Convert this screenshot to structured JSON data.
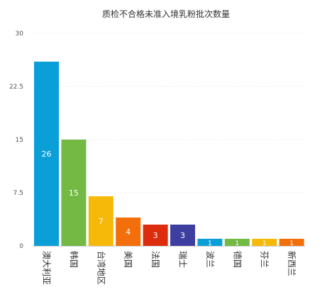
{
  "chart_data": {
    "type": "bar",
    "title": "质检不合格未准入境乳粉批次数量",
    "xlabel": "",
    "ylabel": "",
    "categories": [
      "澳大利亚",
      "韩国",
      "台湾地区",
      "美国",
      "法国",
      "瑞士",
      "波兰",
      "德国",
      "芬兰",
      "新西兰"
    ],
    "values": [
      26,
      15,
      7,
      4,
      3,
      3,
      1,
      1,
      1,
      1
    ],
    "data_labels": [
      "26",
      "15",
      "7",
      "4",
      "3",
      "3",
      "1",
      "1",
      "1",
      "1"
    ],
    "colors": [
      "#0b9fd8",
      "#73b944",
      "#f6b90a",
      "#f36f0b",
      "#dd2b0d",
      "#3d3ea0",
      "#0b9fd8",
      "#73b944",
      "#f6b90a",
      "#f36f0b"
    ],
    "ylim": [
      0,
      30
    ],
    "yticks": [
      0,
      7.5,
      15,
      22.5,
      30
    ],
    "ytick_labels": [
      "0",
      "7.5",
      "15",
      "22.5",
      "30"
    ],
    "grid": true,
    "legend": "none"
  }
}
